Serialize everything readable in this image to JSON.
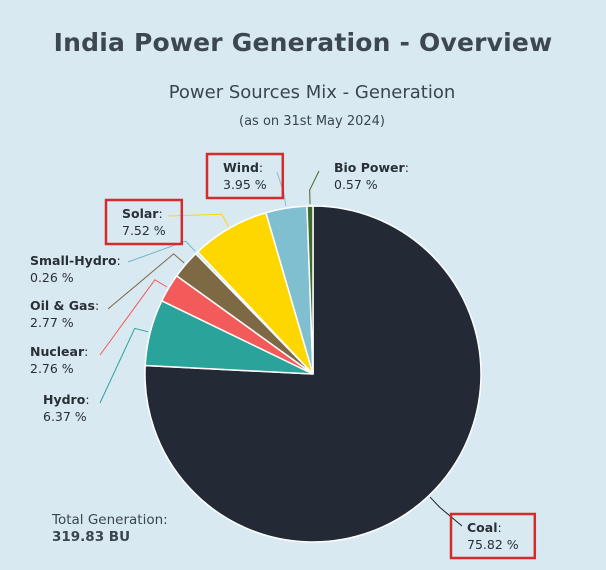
{
  "header": {
    "title": "India Power Generation - Overview",
    "subtitle": "Power Sources Mix - Generation",
    "as_of": "(as on 31st May 2024)"
  },
  "total": {
    "label": "Total Generation:",
    "value": "319.83 BU"
  },
  "chart_data": {
    "type": "pie",
    "title": "Power Sources Mix - Generation",
    "subtitle": "(as on 31st May 2024)",
    "unit": "%",
    "slices": [
      {
        "name": "Coal",
        "value": 75.82,
        "display": "75.82 %",
        "color": "#232a35",
        "highlighted": true
      },
      {
        "name": "Hydro",
        "value": 6.37,
        "display": "6.37 %",
        "color": "#2aa39a",
        "highlighted": false
      },
      {
        "name": "Nuclear",
        "value": 2.76,
        "display": "2.76 %",
        "color": "#f35a5a",
        "highlighted": false
      },
      {
        "name": "Oil & Gas",
        "value": 2.77,
        "display": "2.77 %",
        "color": "#7d6a45",
        "highlighted": false
      },
      {
        "name": "Small-Hydro",
        "value": 0.26,
        "display": "0.26 %",
        "color": "#bfe3d6",
        "highlighted": false
      },
      {
        "name": "Solar",
        "value": 7.52,
        "display": "7.52 %",
        "color": "#ffd700",
        "highlighted": true
      },
      {
        "name": "Wind",
        "value": 3.95,
        "display": "3.95 %",
        "color": "#7fbfd0",
        "highlighted": true
      },
      {
        "name": "Bio Power",
        "value": 0.57,
        "display": "0.57 %",
        "color": "#3f6b2a",
        "highlighted": false
      }
    ],
    "legend": "none",
    "highlight_color": "#d62b2b"
  }
}
